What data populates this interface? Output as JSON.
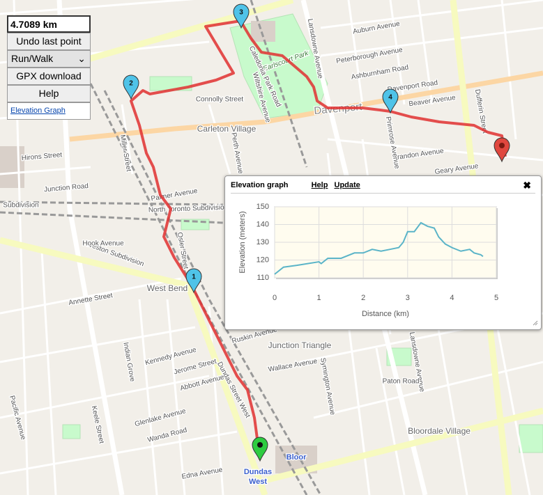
{
  "controls": {
    "distance": "4.7089 km",
    "undo": "Undo last point",
    "mode": "Run/Walk",
    "gpx": "GPX download",
    "help": "Help",
    "elevation_link": "Elevation Graph"
  },
  "markers": [
    "1",
    "2",
    "3",
    "4"
  ],
  "map": {
    "labels": [
      "Keele Street",
      "Dundas Street West",
      "Lansdowne Avenue",
      "Lansdowne Avenue",
      "Davenport Road",
      "Davenport",
      "Carleton Village",
      "Earlscourt Park",
      "Junction Triangle",
      "West Bend",
      "Bloordale Village",
      "Bloor",
      "Dundas",
      "West",
      "Dufferin Street",
      "Annette Street",
      "Junction Road",
      "North Toronto Subdivision",
      "Weston Subdivision",
      "Hook Avenue",
      "Wallace Avenue",
      "Paton Road",
      "Geary Avenue",
      "Brandon Avenue",
      "Primrose Avenue",
      "Caledonia Park Road",
      "Connolly Street",
      "Symington Avenue",
      "Edna Avenue",
      "Glenlake Avenue",
      "Wanda Road",
      "Ruskin Avenue",
      "Auburn Avenue",
      "Peterborough Avenue",
      "Ashburnham Road",
      "Beaver Avenue",
      "Osler Street",
      "Miller Street",
      "Kennedy Avenue",
      "Jerome Street",
      "Abbott Avenue",
      "Palmer Avenue",
      "Hirons Street",
      "Subdivision",
      "Perth Avenue",
      "Wiltshire Avenue",
      "Indian Grove",
      "Pacific Avenue"
    ]
  },
  "elevation_graph": {
    "type": "line",
    "title": "Elevation graph",
    "help": "Help",
    "update": "Update",
    "close": "✖",
    "xlabel": "Distance (km)",
    "ylabel": "Elevation (meters)",
    "x": [
      0,
      0.2,
      0.5,
      1.0,
      1.05,
      1.2,
      1.5,
      1.8,
      2.0,
      2.2,
      2.4,
      2.6,
      2.8,
      2.9,
      3.0,
      3.15,
      3.3,
      3.45,
      3.6,
      3.7,
      3.85,
      4.0,
      4.2,
      4.4,
      4.5,
      4.65,
      4.7
    ],
    "values": [
      112,
      116,
      117,
      119,
      118,
      121,
      121,
      124,
      124,
      126,
      125,
      126,
      127,
      130,
      136,
      136,
      141,
      139,
      138,
      133,
      129,
      127,
      125,
      126,
      124,
      123,
      122
    ],
    "color": "#5ab4c8",
    "xlim": [
      0,
      5
    ],
    "ylim": [
      110,
      150
    ],
    "xticks": [
      0,
      1,
      2,
      3,
      4,
      5
    ],
    "yticks": [
      110,
      120,
      130,
      140,
      150
    ],
    "grid": true
  }
}
